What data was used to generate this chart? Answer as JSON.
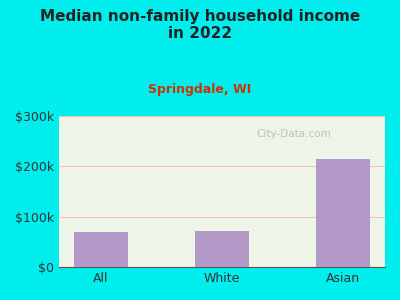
{
  "title_line1": "Median non-family household income",
  "title_line2": "in 2022",
  "subtitle": "Springdale, WI",
  "categories": [
    "All",
    "White",
    "Asian"
  ],
  "values": [
    70000,
    72000,
    215000
  ],
  "bar_color": "#b399c8",
  "title_color": "#222222",
  "subtitle_color": "#cc3300",
  "background_color": "#00eeee",
  "plot_bg_color": "#eef5e8",
  "ylim": [
    0,
    300000
  ],
  "yticks": [
    0,
    100000,
    200000,
    300000
  ],
  "ytick_labels": [
    "$0",
    "$100k",
    "$200k",
    "$300k"
  ],
  "watermark": "City-Data.com",
  "grid_color": "#f5c0c0",
  "axis_color": "#555555",
  "tick_color": "#333333"
}
